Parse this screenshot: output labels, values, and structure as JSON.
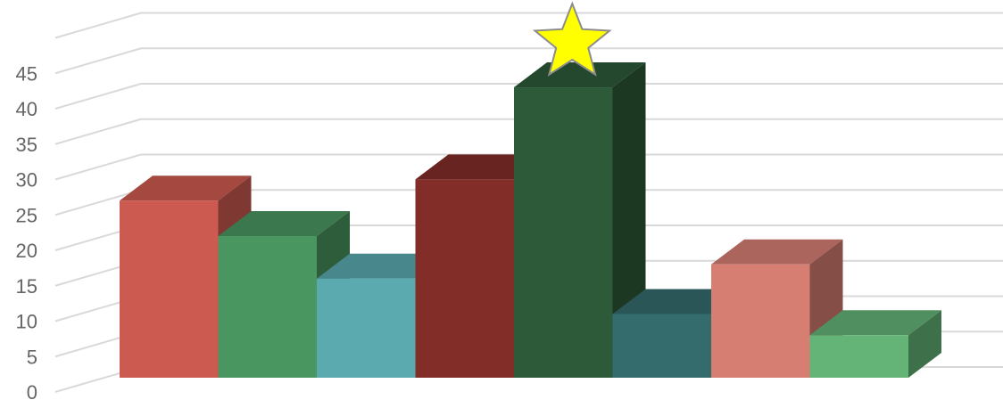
{
  "chart_data": {
    "type": "bar",
    "style": "3d-clustered-column",
    "y_ticks": [
      "0",
      "5",
      "10",
      "15",
      "20",
      "25",
      "30",
      "35",
      "40",
      "45"
    ],
    "ylim": [
      0,
      50
    ],
    "grid": true,
    "legend": "none",
    "groups": [
      {
        "bars": [
          {
            "value": 25,
            "color": "#cd5a50"
          },
          {
            "value": 20,
            "color": "#4a9660"
          },
          {
            "value": 14,
            "color": "#5aaab0"
          }
        ]
      },
      {
        "bars": [
          {
            "value": 28,
            "color": "#822d28"
          },
          {
            "value": 41,
            "color": "#2d5a38"
          },
          {
            "value": 9,
            "color": "#346c6e"
          }
        ]
      },
      {
        "bars": [
          {
            "value": 16,
            "color": "#d77e73"
          },
          {
            "value": 6,
            "color": "#64b478"
          }
        ]
      }
    ],
    "annotation": {
      "type": "star",
      "color": "#ffff00",
      "on_bar": [
        1,
        1
      ]
    }
  }
}
